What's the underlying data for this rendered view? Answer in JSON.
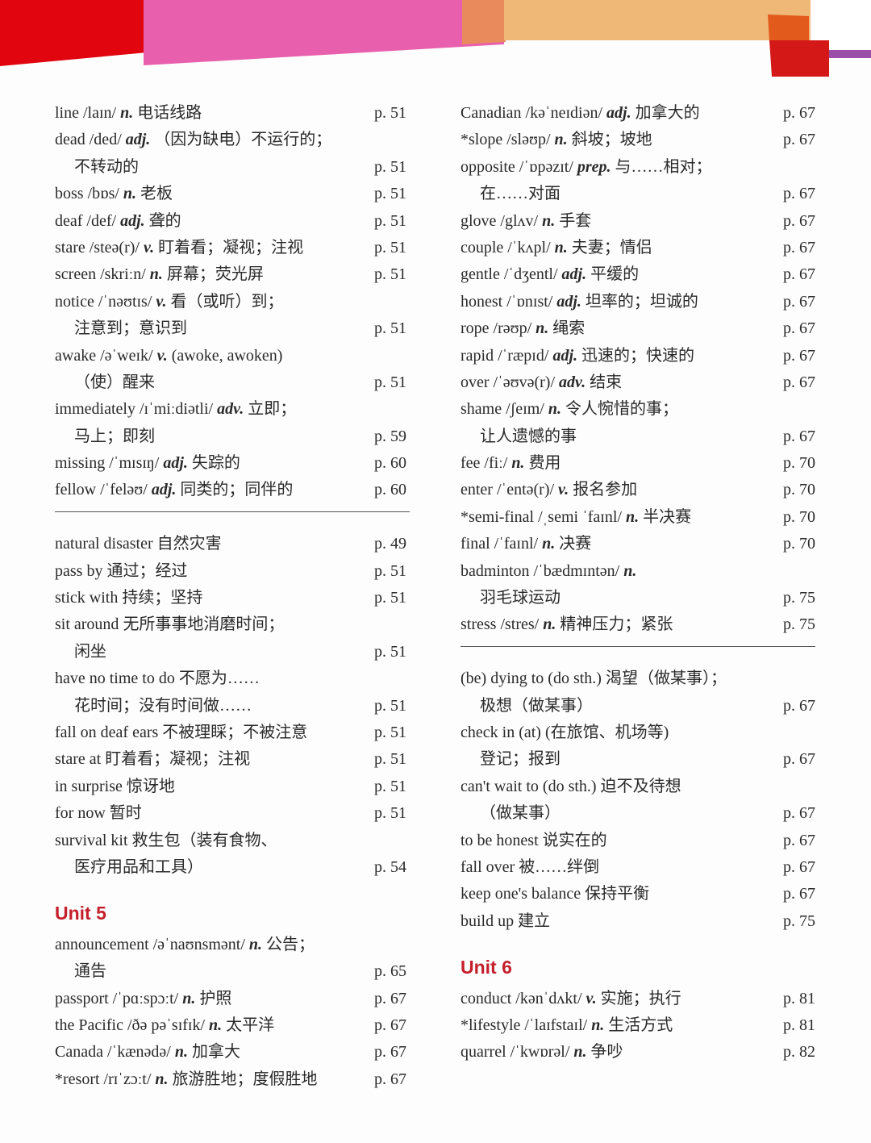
{
  "colors": {
    "heading": "#c41f2b",
    "banner": [
      "#e0050f",
      "#e85fae",
      "#e98a5c",
      "#efb877",
      "#d41818",
      "#9b4fa8"
    ]
  },
  "columns": [
    [
      {
        "w": "line /laɪn/",
        "pos": "n.",
        "d": "电话线路",
        "p": "p. 51"
      },
      {
        "w": "dead /ded/",
        "pos": "adj.",
        "d": "（因为缺电）不运行的；"
      },
      {
        "indent": true,
        "d": "不转动的",
        "p": "p. 51"
      },
      {
        "w": "boss /bɒs/",
        "pos": "n.",
        "d": "老板",
        "p": "p. 51"
      },
      {
        "w": "deaf /def/",
        "pos": "adj.",
        "d": "聋的",
        "p": "p. 51"
      },
      {
        "w": "stare /steə(r)/",
        "pos": "v.",
        "d": "盯着看；凝视；注视",
        "p": "p. 51"
      },
      {
        "w": "screen /skriːn/",
        "pos": "n.",
        "d": "屏幕；荧光屏",
        "p": "p. 51"
      },
      {
        "w": "notice /ˈnəʊtɪs/",
        "pos": "v.",
        "d": "看（或听）到；"
      },
      {
        "indent": true,
        "d": "注意到；意识到",
        "p": "p. 51"
      },
      {
        "w": "awake /əˈweɪk/",
        "pos": "v.",
        "d": "(awoke, awoken)"
      },
      {
        "indent": true,
        "d": "（使）醒来",
        "p": "p. 51"
      },
      {
        "w": "immediately /ɪˈmiːdiətli/",
        "pos": "adv.",
        "d": "立即；"
      },
      {
        "indent": true,
        "d": "马上；即刻",
        "p": "p. 59"
      },
      {
        "w": "missing /ˈmɪsɪŋ/",
        "pos": "adj.",
        "d": "失踪的",
        "p": "p. 60"
      },
      {
        "w": "fellow /ˈfeləʊ/",
        "pos": "adj.",
        "d": "同类的；同伴的",
        "p": "p. 60"
      },
      {
        "type": "rule"
      },
      {
        "w": "natural disaster",
        "d": "自然灾害",
        "p": "p. 49"
      },
      {
        "w": "pass by",
        "d": "通过；经过",
        "p": "p. 51"
      },
      {
        "w": "stick with",
        "d": "持续；坚持",
        "p": "p. 51"
      },
      {
        "w": "sit around",
        "d": "无所事事地消磨时间；"
      },
      {
        "indent": true,
        "d": "闲坐",
        "p": "p. 51"
      },
      {
        "w": "have no time to do",
        "d": "不愿为……"
      },
      {
        "indent": true,
        "d": "花时间；没有时间做……",
        "p": "p. 51"
      },
      {
        "w": "fall on deaf ears",
        "d": "不被理睬；不被注意",
        "p": "p. 51"
      },
      {
        "w": "stare at",
        "d": "盯着看；凝视；注视",
        "p": "p. 51"
      },
      {
        "w": "in surprise",
        "d": "惊讶地",
        "p": "p. 51"
      },
      {
        "w": "for now",
        "d": "暂时",
        "p": "p. 51"
      },
      {
        "w": "survival kit",
        "d": "救生包（装有食物、"
      },
      {
        "indent": true,
        "d": "医疗用品和工具）",
        "p": "p. 54"
      },
      {
        "type": "heading",
        "text": "Unit 5"
      },
      {
        "w": "announcement /əˈnaʊnsmənt/",
        "pos": "n.",
        "d": "公告；"
      },
      {
        "indent": true,
        "d": "通告",
        "p": "p. 65"
      },
      {
        "w": "passport /ˈpɑːspɔːt/",
        "pos": "n.",
        "d": "护照",
        "p": "p. 67"
      },
      {
        "w": "the Pacific /ðə pəˈsɪfɪk/",
        "pos": "n.",
        "d": "太平洋",
        "p": "p. 67"
      },
      {
        "w": "Canada /ˈkænədə/",
        "pos": "n.",
        "d": "加拿大",
        "p": "p. 67"
      },
      {
        "w": "*resort /rɪˈzɔːt/",
        "pos": "n.",
        "d": "旅游胜地；度假胜地",
        "p": "p. 67"
      }
    ],
    [
      {
        "w": "Canadian /kəˈneɪdiən/",
        "pos": "adj.",
        "d": "加拿大的",
        "p": "p. 67"
      },
      {
        "w": "*slope /sləʊp/",
        "pos": "n.",
        "d": "斜坡；坡地",
        "p": "p. 67"
      },
      {
        "w": "opposite /ˈɒpəzɪt/",
        "pos": "prep.",
        "d": "与……相对；"
      },
      {
        "indent": true,
        "d": "在……对面",
        "p": "p. 67"
      },
      {
        "w": "glove /glʌv/",
        "pos": "n.",
        "d": "手套",
        "p": "p. 67"
      },
      {
        "w": "couple /ˈkʌpl/",
        "pos": "n.",
        "d": "夫妻；情侣",
        "p": "p. 67"
      },
      {
        "w": "gentle /ˈdʒentl/",
        "pos": "adj.",
        "d": "平缓的",
        "p": "p. 67"
      },
      {
        "w": "honest /ˈɒnɪst/",
        "pos": "adj.",
        "d": "坦率的；坦诚的",
        "p": "p. 67"
      },
      {
        "w": "rope /rəʊp/",
        "pos": "n.",
        "d": "绳索",
        "p": "p. 67"
      },
      {
        "w": "rapid /ˈræpɪd/",
        "pos": "adj.",
        "d": "迅速的；快速的",
        "p": "p. 67"
      },
      {
        "w": "over /ˈəʊvə(r)/",
        "pos": "adv.",
        "d": "结束",
        "p": "p. 67"
      },
      {
        "w": "shame /ʃeɪm/",
        "pos": "n.",
        "d": "令人惋惜的事；"
      },
      {
        "indent": true,
        "d": "让人遗憾的事",
        "p": "p. 67"
      },
      {
        "w": "fee /fiː/",
        "pos": "n.",
        "d": "费用",
        "p": "p. 70"
      },
      {
        "w": "enter /ˈentə(r)/",
        "pos": "v.",
        "d": "报名参加",
        "p": "p. 70"
      },
      {
        "w": "*semi-final /ˌsemi ˈfaɪnl/",
        "pos": "n.",
        "d": "半决赛",
        "p": "p. 70"
      },
      {
        "w": "final /ˈfaɪnl/",
        "pos": "n.",
        "d": "决赛",
        "p": "p. 70"
      },
      {
        "w": "badminton /ˈbædmɪntən/",
        "pos": "n."
      },
      {
        "indent": true,
        "d": "羽毛球运动",
        "p": "p. 75"
      },
      {
        "w": "stress /stres/",
        "pos": "n.",
        "d": "精神压力；紧张",
        "p": "p. 75"
      },
      {
        "type": "rule"
      },
      {
        "w": "(be) dying to (do sth.)",
        "d": "渴望（做某事）；"
      },
      {
        "indent": true,
        "d": "极想（做某事）",
        "p": "p. 67"
      },
      {
        "w": "check in (at)",
        "d": "(在旅馆、机场等)"
      },
      {
        "indent": true,
        "d": "登记；报到",
        "p": "p. 67"
      },
      {
        "w": "can't wait to (do sth.)",
        "d": "迫不及待想"
      },
      {
        "indent": true,
        "d": "（做某事）",
        "p": "p. 67"
      },
      {
        "w": "to be honest",
        "d": "说实在的",
        "p": "p. 67"
      },
      {
        "w": "fall over",
        "d": "被……绊倒",
        "p": "p. 67"
      },
      {
        "w": "keep one's balance",
        "d": "保持平衡",
        "p": "p. 67"
      },
      {
        "w": "build up",
        "d": "建立",
        "p": "p. 75"
      },
      {
        "type": "heading",
        "text": "Unit 6"
      },
      {
        "w": "conduct /kənˈdʌkt/",
        "pos": "v.",
        "d": "实施；执行",
        "p": "p. 81"
      },
      {
        "w": "*lifestyle /ˈlaɪfstaɪl/",
        "pos": "n.",
        "d": "生活方式",
        "p": "p. 81"
      },
      {
        "w": "quarrel /ˈkwɒrəl/",
        "pos": "n.",
        "d": "争吵",
        "p": "p. 82"
      }
    ]
  ]
}
